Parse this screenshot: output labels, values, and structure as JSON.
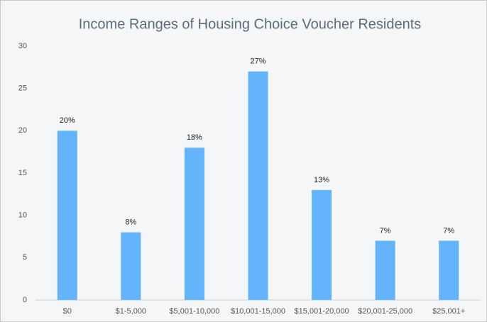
{
  "chart_data": {
    "type": "bar",
    "title": "Income Ranges of Housing Choice Voucher Residents",
    "categories": [
      "$0",
      "$1-5,000",
      "$5,001-10,000",
      "$10,001-15,000",
      "$15,001-20,000",
      "$20,001-25,000",
      "$25,001+"
    ],
    "values": [
      20,
      8,
      18,
      27,
      13,
      7,
      7
    ],
    "value_labels": [
      "20%",
      "8%",
      "18%",
      "27%",
      "13%",
      "7%",
      "7%"
    ],
    "color": "#63b4fa",
    "ylim": [
      0,
      30
    ],
    "yticks": [
      0,
      5,
      10,
      15,
      20,
      25,
      30
    ],
    "grid": false
  }
}
